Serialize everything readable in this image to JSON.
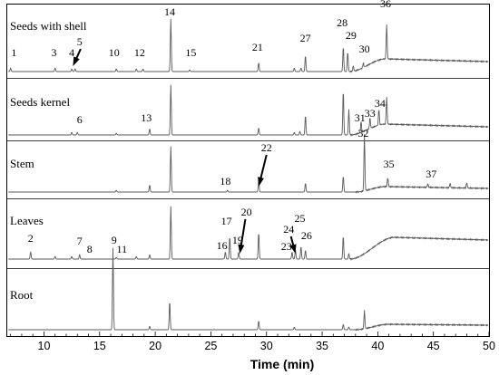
{
  "chart_data": {
    "type": "line",
    "subtype": "stacked chromatograms",
    "xlabel": "Time (min)",
    "ylabel": "",
    "xlim": [
      6.7,
      50
    ],
    "xticks": [
      10,
      15,
      20,
      25,
      30,
      35,
      40,
      45,
      50
    ],
    "grid": false,
    "legend": "none",
    "line_color": "#5a5a5a",
    "panels": [
      {
        "name": "Seeds with shell",
        "peaks": [
          {
            "t": 7.0,
            "h": 4
          },
          {
            "t": 11.0,
            "h": 4
          },
          {
            "t": 12.5,
            "h": 3
          },
          {
            "t": 12.8,
            "h": 3
          },
          {
            "t": 16.5,
            "h": 3
          },
          {
            "t": 18.3,
            "h": 3
          },
          {
            "t": 18.9,
            "h": 3
          },
          {
            "t": 21.4,
            "h": 58
          },
          {
            "t": 23.1,
            "h": 2
          },
          {
            "t": 29.3,
            "h": 10
          },
          {
            "t": 32.5,
            "h": 4
          },
          {
            "t": 33.1,
            "h": 4
          },
          {
            "t": 33.5,
            "h": 18
          },
          {
            "t": 36.9,
            "h": 28
          },
          {
            "t": 37.3,
            "h": 22
          },
          {
            "t": 37.8,
            "h": 6
          },
          {
            "t": 38.7,
            "h": 5
          },
          {
            "t": 40.8,
            "h": 38
          }
        ],
        "baseline_rise": {
          "from": 37.5,
          "to": 40.7,
          "level": 14,
          "end": 50,
          "end_level": 11
        },
        "labels": [
          {
            "text": "1",
            "t": 7.3,
            "dy": -17
          },
          {
            "text": "3",
            "t": 10.9,
            "dy": -17
          },
          {
            "text": "4",
            "t": 12.5,
            "dy": -17
          },
          {
            "text": "5",
            "t": 13.2,
            "dy": -29
          },
          {
            "text": "10",
            "t": 16.3,
            "dy": -17
          },
          {
            "text": "12",
            "t": 18.6,
            "dy": -17
          },
          {
            "text": "14",
            "t": 21.3,
            "dy": -62
          },
          {
            "text": "15",
            "t": 23.2,
            "dy": -17
          },
          {
            "text": "21",
            "t": 29.2,
            "dy": -23
          },
          {
            "text": "27",
            "t": 33.5,
            "dy": -33
          },
          {
            "text": "28",
            "t": 36.8,
            "dy": -50
          },
          {
            "text": "29",
            "t": 37.6,
            "dy": -36
          },
          {
            "text": "30",
            "t": 38.8,
            "dy": -21
          },
          {
            "text": "36",
            "t": 40.7,
            "dy": -71
          }
        ],
        "arrows": [
          {
            "label": "5",
            "from_t": 13.3,
            "to_t": 12.6
          }
        ]
      },
      {
        "name": "Seeds kernel",
        "peaks": [
          {
            "t": 12.5,
            "h": 3
          },
          {
            "t": 13.0,
            "h": 3
          },
          {
            "t": 16.5,
            "h": 2
          },
          {
            "t": 19.5,
            "h": 7
          },
          {
            "t": 21.4,
            "h": 55
          },
          {
            "t": 29.3,
            "h": 8
          },
          {
            "t": 32.5,
            "h": 3
          },
          {
            "t": 33.0,
            "h": 4
          },
          {
            "t": 33.5,
            "h": 22
          },
          {
            "t": 36.9,
            "h": 50
          },
          {
            "t": 37.4,
            "h": 28
          },
          {
            "t": 38.5,
            "h": 12
          },
          {
            "t": 39.3,
            "h": 12
          },
          {
            "t": 40.1,
            "h": 18
          },
          {
            "t": 40.8,
            "h": 30
          }
        ],
        "baseline_rise": {
          "from": 37.5,
          "to": 40.7,
          "level": 12,
          "end": 50,
          "end_level": 9
        },
        "labels": [
          {
            "text": "6",
            "t": 13.2,
            "dy": -13
          },
          {
            "text": "13",
            "t": 19.2,
            "dy": -15
          },
          {
            "text": "31",
            "t": 38.4,
            "dy": -15
          },
          {
            "text": "33",
            "t": 39.3,
            "dy": -20
          },
          {
            "text": "34",
            "t": 40.2,
            "dy": -31
          }
        ]
      },
      {
        "name": "Stem",
        "peaks": [
          {
            "t": 16.5,
            "h": 2
          },
          {
            "t": 19.5,
            "h": 8
          },
          {
            "t": 21.4,
            "h": 50
          },
          {
            "t": 26.5,
            "h": 2
          },
          {
            "t": 29.3,
            "h": 12
          },
          {
            "t": 33.5,
            "h": 10
          },
          {
            "t": 36.9,
            "h": 18
          },
          {
            "t": 38.8,
            "h": 62
          },
          {
            "t": 40.9,
            "h": 10
          },
          {
            "t": 44.5,
            "h": 4
          },
          {
            "t": 46.5,
            "h": 5
          },
          {
            "t": 48.0,
            "h": 6
          }
        ],
        "baseline_rise": {
          "from": 38.0,
          "to": 40.7,
          "level": 6,
          "end": 50,
          "end_level": 4
        },
        "labels": [
          {
            "text": "32",
            "t": 38.7,
            "dy": -61
          },
          {
            "text": "18",
            "t": 26.3,
            "dy": -8
          },
          {
            "text": "22",
            "t": 30.0,
            "dy": -45
          },
          {
            "text": "35",
            "t": 41.0,
            "dy": -27
          },
          {
            "text": "37",
            "t": 44.8,
            "dy": -16
          }
        ],
        "arrows": [
          {
            "label": "22",
            "from_t": 30.0,
            "to_t": 29.3
          }
        ]
      },
      {
        "name": "Leaves",
        "peaks": [
          {
            "t": 8.8,
            "h": 8
          },
          {
            "t": 11.0,
            "h": 3
          },
          {
            "t": 12.5,
            "h": 3
          },
          {
            "t": 13.2,
            "h": 5
          },
          {
            "t": 16.5,
            "h": 2
          },
          {
            "t": 18.3,
            "h": 3
          },
          {
            "t": 19.5,
            "h": 5
          },
          {
            "t": 21.4,
            "h": 58
          },
          {
            "t": 26.3,
            "h": 8
          },
          {
            "t": 26.7,
            "h": 25
          },
          {
            "t": 27.5,
            "h": 8
          },
          {
            "t": 29.3,
            "h": 30
          },
          {
            "t": 32.3,
            "h": 8
          },
          {
            "t": 32.6,
            "h": 10
          },
          {
            "t": 33.1,
            "h": 14
          },
          {
            "t": 33.5,
            "h": 10
          },
          {
            "t": 36.9,
            "h": 26
          },
          {
            "t": 37.4,
            "h": 6
          }
        ],
        "baseline_rise": {
          "from": 37.5,
          "to": 41.5,
          "level": 24,
          "end": 50,
          "end_level": 21
        },
        "labels": [
          {
            "text": "2",
            "t": 8.8,
            "dy": -19
          },
          {
            "text": "7",
            "t": 13.2,
            "dy": -16
          },
          {
            "text": "8",
            "t": 14.1,
            "dy": -7
          },
          {
            "text": "11",
            "t": 17.0,
            "dy": -7
          },
          {
            "text": "16",
            "t": 26.0,
            "dy": -11
          },
          {
            "text": "17",
            "t": 26.4,
            "dy": -38
          },
          {
            "text": "19",
            "t": 27.4,
            "dy": -17
          },
          {
            "text": "20",
            "t": 28.2,
            "dy": -48
          },
          {
            "text": "23",
            "t": 31.8,
            "dy": -10
          },
          {
            "text": "24",
            "t": 32.0,
            "dy": -29
          },
          {
            "text": "25",
            "t": 33.0,
            "dy": -41
          },
          {
            "text": "26",
            "t": 33.6,
            "dy": -22
          }
        ],
        "arrows": [
          {
            "label": "20",
            "from_t": 28.1,
            "to_t": 27.6
          },
          {
            "label": "24",
            "from_t": 32.2,
            "to_t": 32.6
          }
        ]
      },
      {
        "name": "Root",
        "peaks": [
          {
            "t": 16.2,
            "h": 90
          },
          {
            "t": 19.5,
            "h": 4
          },
          {
            "t": 21.3,
            "h": 32
          },
          {
            "t": 29.3,
            "h": 10
          },
          {
            "t": 32.5,
            "h": 3
          },
          {
            "t": 36.9,
            "h": 6
          },
          {
            "t": 37.4,
            "h": 3
          },
          {
            "t": 38.8,
            "h": 20
          }
        ],
        "baseline_rise": {
          "from": 38.0,
          "to": 41.0,
          "level": 6,
          "end": 50,
          "end_level": 5
        },
        "labels": [
          {
            "text": "9",
            "t": 16.3,
            "dy": -95
          }
        ]
      }
    ]
  }
}
